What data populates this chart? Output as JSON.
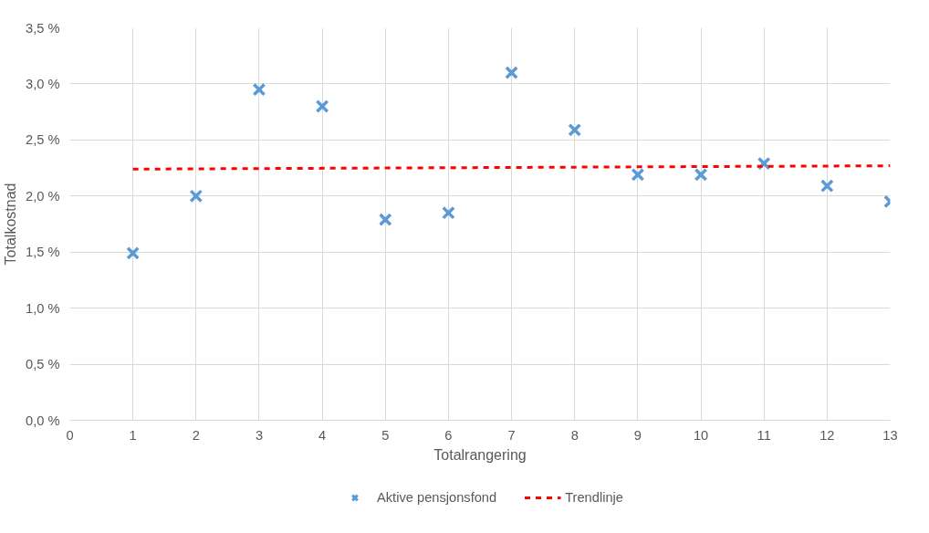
{
  "chart_data": {
    "type": "scatter",
    "xlabel": "Totalrangering",
    "ylabel": "Totalkostnad",
    "x": [
      1,
      2,
      3,
      4,
      5,
      6,
      7,
      8,
      9,
      10,
      11,
      12,
      13
    ],
    "series": [
      {
        "name": "Aktive pensjonsfond",
        "type": "scatter",
        "color": "#5b9bd5",
        "marker": "cross",
        "values": [
          1.49,
          2.0,
          2.95,
          2.8,
          1.79,
          1.85,
          3.1,
          2.59,
          2.19,
          2.19,
          2.29,
          2.09,
          1.95
        ]
      },
      {
        "name": "Trendlinje",
        "type": "line",
        "color": "#ff0000",
        "line_style": "dashed",
        "marker": "none",
        "x": [
          1,
          13
        ],
        "values": [
          2.24,
          2.27
        ]
      }
    ],
    "xlim": [
      0,
      13
    ],
    "xticks": [
      0,
      1,
      2,
      3,
      4,
      5,
      6,
      7,
      8,
      9,
      10,
      11,
      12,
      13
    ],
    "ylim": [
      0,
      3.5
    ],
    "yticks": [
      {
        "value": 0,
        "label": "0,0 %"
      },
      {
        "value": 0.5,
        "label": "0,5 %"
      },
      {
        "value": 1,
        "label": "1,0 %"
      },
      {
        "value": 1.5,
        "label": "1,5 %"
      },
      {
        "value": 2,
        "label": "2,0 %"
      },
      {
        "value": 2.5,
        "label": "2,5 %"
      },
      {
        "value": 3,
        "label": "3,0 %"
      },
      {
        "value": 3.5,
        "label": "3,5 %"
      }
    ],
    "grid": true,
    "legend": "bottom"
  }
}
